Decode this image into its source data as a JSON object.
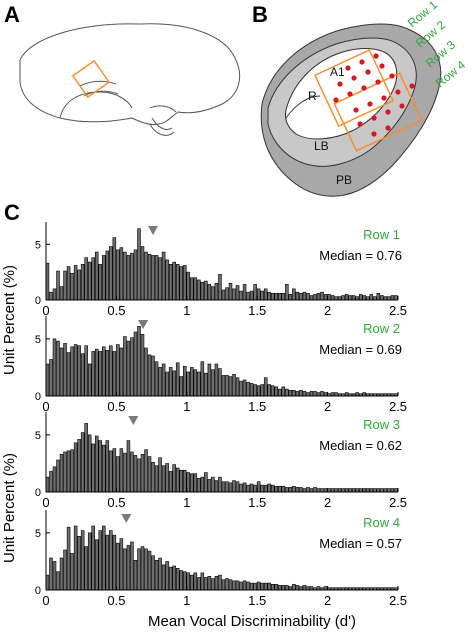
{
  "panels": {
    "a": "A",
    "b": "B",
    "c": "C"
  },
  "map": {
    "region_labels": {
      "a1": "A1",
      "r": "R",
      "lb": "LB",
      "pb": "PB"
    },
    "row_labels": [
      "Row 1",
      "Row 2",
      "Row 3",
      "Row 4"
    ],
    "colors": {
      "outline": "#ff8a1d",
      "dots": "#e0141e",
      "belt_light": "#c8c8c8",
      "belt_dark": "#a8a8a8"
    }
  },
  "axes": {
    "xlabel": "Mean Vocal Discriminability (d')",
    "ylabel_top": "Unit Percent (%)",
    "ylabel_bottom": "Unit Percent (%)"
  },
  "chart_data": [
    {
      "type": "bar",
      "title": "Row 1",
      "median_text": "Median = 0.76",
      "median": 0.76,
      "xlim": [
        0,
        2.5
      ],
      "ylim": [
        0,
        7
      ],
      "xticks": [
        "0",
        "0.5",
        "1",
        "1.5",
        "2",
        "2.5"
      ],
      "yticks": [
        "0",
        "5"
      ],
      "bin_width": 0.025,
      "bar_color": "#6e6e6e",
      "values": [
        3.3,
        0.7,
        1.0,
        2.6,
        1.2,
        2.6,
        3.0,
        2.4,
        3.1,
        2.7,
        3.2,
        3.8,
        3.4,
        3.8,
        4.3,
        3.2,
        4.0,
        4.4,
        4.8,
        5.6,
        4.5,
        4.7,
        4.3,
        4.0,
        4.2,
        4.5,
        6.4,
        4.8,
        4.3,
        4.1,
        4.0,
        4.0,
        3.8,
        4.3,
        3.6,
        3.2,
        3.4,
        3.2,
        3.0,
        3.1,
        2.5,
        2.0,
        2.0,
        1.8,
        1.6,
        1.7,
        1.4,
        1.2,
        1.5,
        2.3,
        0.9,
        1.1,
        1.5,
        1.0,
        1.3,
        0.8,
        1.4,
        0.7,
        0.8,
        1.4,
        1.0,
        0.8,
        1.0,
        0.7,
        0.6,
        0.6,
        0.6,
        0.6,
        1.4,
        0.5,
        1.0,
        0.7,
        0.6,
        0.7,
        0.6,
        0.4,
        0.5,
        0.6,
        0.7,
        0.5,
        0.5,
        0.4,
        0.3,
        0.3,
        0.4,
        0.5,
        0.4,
        0.4,
        0.3,
        0.5,
        0.4,
        0.3,
        0.5,
        0.3,
        0.6,
        0.4,
        0.3,
        0.3,
        0.4,
        0.4
      ]
    },
    {
      "type": "bar",
      "title": "Row 2",
      "median_text": "Median = 0.69",
      "median": 0.69,
      "xlim": [
        0,
        2.5
      ],
      "ylim": [
        0,
        7
      ],
      "xticks": [
        "0",
        "0.5",
        "1",
        "1.5",
        "2",
        "2.5"
      ],
      "yticks": [
        "0",
        "5"
      ],
      "bin_width": 0.025,
      "bar_color": "#6e6e6e",
      "values": [
        2.8,
        3.2,
        5.0,
        4.8,
        4.2,
        4.6,
        3.8,
        4.3,
        4.5,
        4.4,
        3.7,
        4.4,
        2.8,
        3.9,
        4.1,
        3.9,
        4.3,
        4.0,
        4.4,
        3.9,
        4.5,
        4.2,
        5.2,
        4.8,
        5.1,
        5.6,
        6.1,
        5.4,
        4.2,
        3.6,
        3.5,
        3.0,
        2.5,
        2.8,
        2.1,
        2.5,
        2.2,
        2.9,
        1.7,
        2.6,
        2.1,
        2.5,
        2.3,
        2.1,
        3.0,
        2.0,
        2.8,
        2.3,
        2.8,
        2.4,
        1.8,
        1.8,
        1.7,
        1.9,
        1.6,
        1.3,
        1.4,
        1.2,
        1.1,
        1.0,
        0.9,
        1.0,
        1.6,
        1.0,
        0.9,
        0.8,
        0.6,
        0.8,
        0.6,
        0.5,
        0.5,
        0.4,
        0.5,
        0.4,
        0.3,
        0.4,
        0.4,
        0.3,
        0.4,
        0.3,
        0.2,
        0.3,
        0.3,
        0.2,
        0.2,
        0.3,
        0.2,
        0.2,
        0.3,
        0.2,
        0.3,
        0.2,
        0.2,
        0.2,
        0.2,
        0.2,
        0.2,
        0.2,
        0.2,
        0.2
      ]
    },
    {
      "type": "bar",
      "title": "Row 3",
      "median_text": "Median = 0.62",
      "median": 0.62,
      "xlim": [
        0,
        2.5
      ],
      "ylim": [
        0,
        7
      ],
      "xticks": [
        "0",
        "0.5",
        "1",
        "1.5",
        "2",
        "2.5"
      ],
      "yticks": [
        "0",
        "5"
      ],
      "bin_width": 0.025,
      "bar_color": "#6e6e6e",
      "values": [
        1.3,
        1.8,
        2.2,
        2.8,
        3.3,
        3.5,
        3.6,
        3.7,
        4.3,
        4.6,
        5.2,
        6.0,
        5.0,
        4.2,
        4.9,
        4.5,
        4.1,
        4.5,
        3.6,
        3.8,
        3.1,
        3.8,
        3.4,
        4.5,
        3.5,
        3.2,
        2.9,
        3.3,
        3.7,
        3.1,
        2.6,
        2.3,
        3.0,
        2.3,
        2.5,
        1.8,
        2.4,
        2.1,
        1.9,
        1.9,
        1.7,
        1.6,
        1.6,
        1.2,
        1.3,
        1.7,
        1.1,
        1.3,
        1.0,
        1.3,
        0.9,
        0.9,
        0.8,
        1.0,
        0.9,
        0.7,
        0.8,
        0.6,
        0.7,
        0.6,
        0.9,
        0.6,
        0.6,
        0.7,
        0.6,
        0.5,
        0.5,
        0.5,
        0.4,
        0.4,
        0.5,
        0.4,
        0.4,
        0.3,
        0.4,
        0.3,
        0.4,
        0.3,
        0.3,
        0.3,
        0.3,
        0.3,
        0.3,
        0.3,
        0.3,
        0.3,
        0.3,
        0.3,
        0.3,
        0.3,
        0.3,
        0.3,
        0.3,
        0.3,
        0.3,
        0.3,
        0.3,
        0.3,
        0.3,
        0.3
      ]
    },
    {
      "type": "bar",
      "title": "Row 4",
      "median_text": "Median = 0.57",
      "median": 0.57,
      "xlim": [
        0,
        2.5
      ],
      "ylim": [
        0,
        7
      ],
      "xticks": [
        "0",
        "0.5",
        "1",
        "1.5",
        "2",
        "2.5"
      ],
      "yticks": [
        "0",
        "5"
      ],
      "bin_width": 0.025,
      "bar_color": "#6e6e6e",
      "values": [
        1.3,
        2.8,
        2.5,
        1.6,
        2.8,
        3.5,
        5.5,
        3.2,
        5.6,
        4.7,
        5.2,
        3.8,
        5.0,
        5.6,
        4.4,
        5.2,
        5.6,
        4.8,
        5.2,
        4.8,
        4.1,
        4.5,
        3.6,
        3.9,
        4.2,
        2.6,
        3.6,
        3.8,
        3.6,
        3.4,
        3.0,
        2.6,
        2.8,
        2.2,
        2.5,
        2.0,
        2.1,
        1.9,
        1.7,
        1.6,
        1.5,
        1.3,
        1.5,
        1.1,
        1.5,
        1.1,
        1.2,
        1.0,
        1.2,
        1.3,
        0.9,
        1.0,
        0.9,
        0.8,
        0.8,
        0.7,
        0.8,
        0.7,
        0.6,
        0.6,
        0.7,
        0.6,
        0.6,
        0.6,
        0.5,
        0.5,
        0.4,
        0.4,
        0.4,
        0.3,
        0.5,
        0.4,
        0.3,
        0.4,
        0.3,
        0.3,
        0.2,
        0.3,
        0.2,
        0.3,
        0.2,
        0.2,
        0.2,
        0.2,
        0.2,
        0.2,
        0.2,
        0.2,
        0.2,
        0.2,
        0.2,
        0.2,
        0.2,
        0.2,
        0.2,
        0.2,
        0.2,
        0.2,
        0.2,
        0.2
      ]
    }
  ]
}
